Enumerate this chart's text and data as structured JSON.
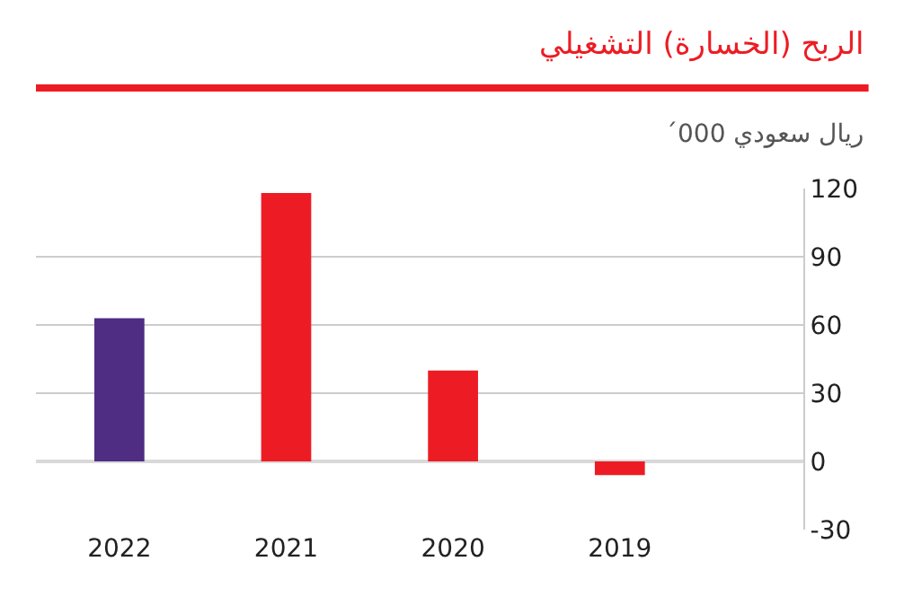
{
  "chart_data": {
    "type": "bar",
    "title": "الربح (الخسارة) التشغيلي",
    "subtitle": "ريال سعودي 000´",
    "categories": [
      "2022",
      "2021",
      "2020",
      "2019"
    ],
    "values": [
      63,
      118,
      40,
      -6
    ],
    "colors": [
      "#4f2d82",
      "#ed1c24",
      "#ed1c24",
      "#ed1c24"
    ],
    "ylim": [
      -30,
      120
    ],
    "yticks": [
      -30,
      0,
      30,
      60,
      90,
      120
    ],
    "grid": "y"
  }
}
